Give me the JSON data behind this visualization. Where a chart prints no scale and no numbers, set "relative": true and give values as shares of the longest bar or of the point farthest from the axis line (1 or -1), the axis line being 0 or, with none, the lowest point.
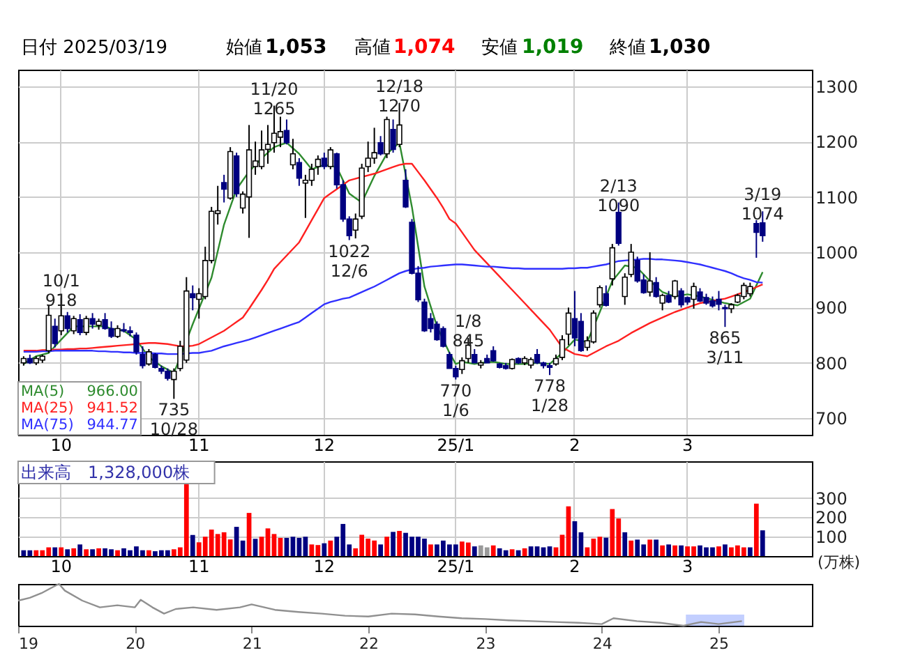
{
  "chart_data": [
    {
      "type": "candlestick",
      "categories": [
        null,
        null,
        null,
        null,
        null,
        null,
        "10",
        null,
        null,
        null,
        null,
        null,
        null,
        null,
        null,
        null,
        null,
        null,
        null,
        null,
        null,
        null,
        null,
        null,
        null,
        null,
        null,
        null,
        "11",
        null,
        null,
        null,
        null,
        null,
        null,
        null,
        null,
        null,
        null,
        null,
        null,
        null,
        null,
        null,
        null,
        null,
        null,
        null,
        "12",
        null,
        null,
        null,
        null,
        null,
        null,
        null,
        null,
        null,
        null,
        null,
        null,
        null,
        null,
        null,
        null,
        null,
        null,
        null,
        null,
        "25/1",
        null,
        null,
        null,
        null,
        null,
        null,
        null,
        null,
        null,
        null,
        null,
        null,
        null,
        null,
        null,
        null,
        null,
        null,
        "2",
        null,
        null,
        null,
        null,
        null,
        null,
        null,
        null,
        null,
        null,
        null,
        null,
        null,
        null,
        null,
        null,
        null,
        "3",
        null,
        null,
        null,
        null,
        null,
        null,
        null,
        null,
        null,
        null,
        null,
        null,
        null,
        null,
        null,
        null,
        null,
        null,
        null
      ],
      "ohlc": [
        [
          800,
          812,
          795,
          808
        ],
        [
          808,
          815,
          798,
          800
        ],
        [
          800,
          812,
          796,
          808
        ],
        [
          805,
          815,
          800,
          812
        ],
        [
          822,
          905,
          818,
          886
        ],
        [
          866,
          880,
          828,
          835
        ],
        [
          858,
          918,
          850,
          885
        ],
        [
          885,
          892,
          855,
          862
        ],
        [
          858,
          885,
          852,
          880
        ],
        [
          878,
          888,
          850,
          855
        ],
        [
          855,
          885,
          850,
          880
        ],
        [
          880,
          890,
          862,
          870
        ],
        [
          868,
          880,
          860,
          875
        ],
        [
          878,
          890,
          860,
          862
        ],
        [
          862,
          875,
          845,
          848
        ],
        [
          848,
          868,
          845,
          862
        ],
        [
          860,
          872,
          855,
          858
        ],
        [
          858,
          866,
          848,
          855
        ],
        [
          850,
          855,
          815,
          820
        ],
        [
          815,
          830,
          790,
          795
        ],
        [
          798,
          825,
          795,
          820
        ],
        [
          815,
          818,
          790,
          792
        ],
        [
          790,
          795,
          780,
          785
        ],
        [
          785,
          790,
          768,
          772
        ],
        [
          770,
          790,
          735,
          785
        ],
        [
          790,
          840,
          785,
          830
        ],
        [
          805,
          955,
          800,
          930
        ],
        [
          925,
          940,
          895,
          918
        ],
        [
          915,
          935,
          880,
          925
        ],
        [
          920,
          1010,
          915,
          985
        ],
        [
          985,
          1082,
          980,
          1074
        ],
        [
          1070,
          1120,
          1050,
          1075
        ],
        [
          1126,
          1140,
          1090,
          1114
        ],
        [
          1098,
          1190,
          1095,
          1182
        ],
        [
          1174,
          1180,
          1100,
          1106
        ],
        [
          1080,
          1110,
          1070,
          1105
        ],
        [
          1100,
          1230,
          1026,
          1185
        ],
        [
          1155,
          1200,
          1140,
          1165
        ],
        [
          1155,
          1220,
          1150,
          1185
        ],
        [
          1186,
          1230,
          1160,
          1195
        ],
        [
          1198,
          1265,
          1180,
          1215
        ],
        [
          1208,
          1245,
          1190,
          1218
        ],
        [
          1220,
          1240,
          1195,
          1198
        ],
        [
          1158,
          1205,
          1150,
          1178
        ],
        [
          1162,
          1170,
          1120,
          1134
        ],
        [
          1125,
          1140,
          1062,
          1130
        ],
        [
          1130,
          1160,
          1120,
          1150
        ],
        [
          1155,
          1175,
          1140,
          1168
        ],
        [
          1170,
          1180,
          1150,
          1155
        ],
        [
          1155,
          1190,
          1150,
          1185
        ],
        [
          1178,
          1180,
          1115,
          1122
        ],
        [
          1122,
          1130,
          1055,
          1060
        ],
        [
          1060,
          1065,
          1022,
          1030
        ],
        [
          1040,
          1070,
          1025,
          1060
        ],
        [
          1065,
          1160,
          1060,
          1152
        ],
        [
          1155,
          1200,
          1145,
          1170
        ],
        [
          1170,
          1225,
          1160,
          1180
        ],
        [
          1198,
          1210,
          1175,
          1178
        ],
        [
          1178,
          1245,
          1170,
          1240
        ],
        [
          1222,
          1240,
          1180,
          1186
        ],
        [
          1195,
          1270,
          1190,
          1230
        ],
        [
          1130,
          1150,
          1080,
          1082
        ],
        [
          1054,
          1060,
          960,
          962
        ],
        [
          962,
          975,
          910,
          914
        ],
        [
          910,
          916,
          856,
          858
        ],
        [
          880,
          890,
          855,
          862
        ],
        [
          870,
          875,
          840,
          842
        ],
        [
          862,
          866,
          828,
          830
        ],
        [
          815,
          820,
          790,
          790
        ],
        [
          790,
          795,
          770,
          775
        ],
        [
          788,
          810,
          780,
          804
        ],
        [
          808,
          845,
          800,
          832
        ],
        [
          815,
          825,
          800,
          800
        ],
        [
          796,
          805,
          790,
          800
        ],
        [
          808,
          815,
          800,
          800
        ],
        [
          822,
          830,
          802,
          804
        ],
        [
          798,
          800,
          790,
          792
        ],
        [
          795,
          800,
          788,
          790
        ],
        [
          790,
          808,
          788,
          806
        ],
        [
          808,
          810,
          798,
          800
        ],
        [
          800,
          812,
          796,
          808
        ],
        [
          796,
          810,
          790,
          806
        ],
        [
          815,
          825,
          798,
          800
        ],
        [
          800,
          802,
          790,
          795
        ],
        [
          795,
          800,
          778,
          792
        ],
        [
          798,
          815,
          795,
          808
        ],
        [
          810,
          850,
          805,
          842
        ],
        [
          852,
          900,
          832,
          890
        ],
        [
          880,
          930,
          830,
          845
        ],
        [
          875,
          890,
          820,
          822
        ],
        [
          828,
          848,
          822,
          840
        ],
        [
          838,
          895,
          835,
          890
        ],
        [
          905,
          940,
          900,
          936
        ],
        [
          925,
          940,
          902,
          904
        ],
        [
          952,
          1015,
          940,
          1008
        ],
        [
          1072,
          1090,
          1012,
          1016
        ],
        [
          920,
          962,
          905,
          955
        ],
        [
          960,
          1015,
          955,
          1000
        ],
        [
          985,
          992,
          945,
          948
        ],
        [
          950,
          960,
          925,
          927
        ],
        [
          928,
          1000,
          920,
          948
        ],
        [
          945,
          955,
          918,
          920
        ],
        [
          908,
          925,
          895,
          922
        ],
        [
          922,
          930,
          908,
          910
        ],
        [
          920,
          950,
          915,
          948
        ],
        [
          930,
          935,
          900,
          905
        ],
        [
          918,
          920,
          905,
          910
        ],
        [
          915,
          945,
          898,
          938
        ],
        [
          928,
          935,
          910,
          912
        ],
        [
          918,
          925,
          905,
          908
        ],
        [
          912,
          920,
          900,
          903
        ],
        [
          915,
          930,
          895,
          906
        ],
        [
          900,
          905,
          865,
          898
        ],
        [
          898,
          908,
          890,
          905
        ],
        [
          910,
          925,
          908,
          922
        ],
        [
          920,
          945,
          915,
          940
        ],
        [
          925,
          945,
          920,
          938
        ],
        [
          1052,
          1058,
          990,
          1036
        ],
        [
          1053,
          1074,
          1019,
          1030
        ],
        null,
        null,
        null,
        null,
        null,
        null,
        null
      ],
      "series": [
        {
          "name": "MA(5)",
          "type": "line",
          "color": "#2e8b2e",
          "values": [
            798,
            805,
            812,
            815,
            818,
            830,
            842,
            854,
            866,
            866,
            866,
            866,
            866,
            866,
            862,
            860,
            858,
            850,
            842,
            826,
            810,
            802,
            794,
            788,
            782,
            810,
            null,
            870,
            898,
            926,
            954,
            1002,
            1050,
            1082,
            1114,
            1130,
            1146,
            1158,
            1170,
            1180,
            1190,
            1194,
            1198,
            1188,
            1178,
            1164,
            1150,
            1154,
            1158,
            1156,
            1154,
            1130,
            1106,
            1098,
            1090,
            1114,
            1138,
            1158,
            1178,
            1188,
            1198,
            1140,
            1082,
            1010,
            938,
            902,
            866,
            842,
            818,
            798,
            802,
            800,
            798,
            800,
            801,
            802,
            800,
            798,
            798,
            798,
            798,
            799,
            800,
            799,
            798,
            808,
            818,
            830,
            842,
            840,
            838,
            865,
            892,
            920,
            948,
            962,
            976,
            974,
            972,
            960,
            948,
            938,
            928,
            924,
            920,
            922,
            924,
            922,
            920,
            917,
            914,
            911,
            908,
            906,
            904,
            910,
            916,
            940,
            964,
            null,
            null,
            null,
            null,
            null,
            null,
            null
          ]
        },
        {
          "name": "MA(25)",
          "type": "line",
          "color": "#ff2020",
          "values": [
            822,
            822,
            822,
            823,
            823,
            824,
            824,
            825,
            825,
            826,
            826,
            827,
            828,
            829,
            830,
            831,
            832,
            833,
            834,
            835,
            836,
            836,
            835,
            834,
            832,
            830,
            830,
            831,
            834,
            840,
            846,
            852,
            858,
            866,
            874,
            882,
            898,
            915,
            932,
            950,
            970,
            982,
            994,
            1006,
            1018,
            1038,
            1058,
            1078,
            1098,
            1106,
            1114,
            1122,
            1130,
            1133,
            1136,
            1139,
            1142,
            1146,
            1150,
            1154,
            1158,
            1160,
            1160,
            1145,
            1130,
            1114,
            1098,
            1080,
            1060,
            1052,
            1036,
            1020,
            1004,
            992,
            980,
            968,
            956,
            944,
            932,
            920,
            908,
            896,
            884,
            872,
            860,
            844,
            828,
            822,
            816,
            814,
            812,
            818,
            824,
            830,
            835,
            840,
            847,
            854,
            860,
            866,
            872,
            877,
            882,
            887,
            892,
            896,
            900,
            904,
            908,
            910,
            912,
            914,
            916,
            920,
            924,
            928,
            932,
            937,
            942,
            null,
            null,
            null,
            null,
            null,
            null,
            null
          ]
        },
        {
          "name": "MA(75)",
          "type": "line",
          "color": "#3030ff",
          "values": [
            820,
            820,
            820,
            821,
            821,
            822,
            822,
            822,
            822,
            822,
            822,
            822,
            821,
            821,
            820,
            820,
            819,
            819,
            818,
            818,
            818,
            817,
            817,
            816,
            816,
            816,
            817,
            818,
            818,
            820,
            822,
            826,
            830,
            833,
            836,
            839,
            842,
            846,
            850,
            854,
            858,
            862,
            866,
            870,
            874,
            882,
            890,
            898,
            906,
            910,
            913,
            916,
            918,
            923,
            928,
            933,
            938,
            944,
            950,
            956,
            962,
            966,
            969,
            971,
            972,
            974,
            975,
            976,
            977,
            978,
            978,
            977,
            976,
            975,
            974,
            974,
            973,
            972,
            971,
            971,
            970,
            970,
            970,
            970,
            970,
            970,
            970,
            971,
            971,
            972,
            972,
            974,
            976,
            978,
            981,
            984,
            985,
            986,
            987,
            988,
            988,
            987,
            987,
            986,
            985,
            984,
            982,
            980,
            978,
            975,
            972,
            969,
            966,
            962,
            957,
            953,
            950,
            946,
            945,
            null,
            null,
            null,
            null,
            null,
            null,
            null
          ]
        }
      ],
      "ylim": [
        670,
        1330
      ],
      "yticks": [
        700,
        800,
        900,
        1000,
        1100,
        1200,
        1300
      ],
      "grid": true,
      "legend": "bottom left",
      "annotations": [
        "日付 2025/03/19",
        "始値",
        "1,053",
        "高値",
        "1,074",
        "安値",
        "1,019",
        "終値",
        "1,030",
        "966.00",
        "941.52",
        "944.77",
        {
          "text": "10/1\n918",
          "y": 918
        },
        {
          "text": "735\n10/28",
          "y": 735
        },
        {
          "text": "11/20\n1265",
          "y": 1265
        },
        {
          "text": "1022\n12/6",
          "y": 1022
        },
        {
          "text": "12/18\n1270",
          "y": 1270
        },
        {
          "text": "770\n1/6",
          "y": 770
        },
        {
          "text": "1/8\n845",
          "y": 845
        },
        {
          "text": "778\n1/28",
          "y": 778
        },
        {
          "text": "2/13\n1090",
          "y": 1090
        },
        {
          "text": "865\n3/11",
          "y": 865
        },
        {
          "text": "3/19\n1074",
          "y": 1074
        }
      ]
    },
    {
      "type": "bar",
      "title": "出来高　1,328,000株",
      "ylabel": "(万株)",
      "categories": [
        null,
        null,
        null,
        null,
        null,
        null,
        "10",
        null,
        null,
        null,
        null,
        null,
        null,
        null,
        null,
        null,
        null,
        null,
        null,
        null,
        null,
        null,
        null,
        null,
        null,
        null,
        null,
        null,
        "11",
        null,
        null,
        null,
        null,
        null,
        null,
        null,
        null,
        null,
        null,
        null,
        null,
        null,
        null,
        null,
        null,
        null,
        null,
        null,
        "12",
        null,
        null,
        null,
        null,
        null,
        null,
        null,
        null,
        null,
        null,
        null,
        null,
        null,
        null,
        null,
        null,
        null,
        null,
        null,
        null,
        "25/1",
        null,
        null,
        null,
        null,
        null,
        null,
        null,
        null,
        null,
        null,
        null,
        null,
        null,
        null,
        null,
        null,
        null,
        null,
        "2",
        null,
        null,
        null,
        null,
        null,
        null,
        null,
        null,
        null,
        null,
        null,
        null,
        null,
        null,
        null,
        null,
        null,
        "3",
        null,
        null,
        null,
        null,
        null,
        null,
        null,
        null,
        null,
        null,
        null,
        null,
        null,
        null,
        null,
        null,
        null,
        null,
        null
      ],
      "values": [
        30,
        30,
        30,
        30,
        45,
        45,
        45,
        35,
        40,
        60,
        35,
        35,
        40,
        40,
        35,
        30,
        40,
        30,
        50,
        30,
        30,
        25,
        30,
        30,
        35,
        45,
        389,
        109,
        71,
        100,
        137,
        114,
        123,
        86,
        151,
        80,
        223,
        89,
        100,
        143,
        114,
        94,
        94,
        100,
        94,
        100,
        60,
        57,
        66,
        80,
        100,
        166,
        60,
        40,
        110,
        90,
        80,
        60,
        100,
        125,
        130,
        120,
        100,
        100,
        90,
        60,
        60,
        80,
        60,
        60,
        75,
        70,
        50,
        55,
        45,
        55,
        40,
        30,
        35,
        30,
        40,
        50,
        50,
        45,
        50,
        45,
        110,
        257,
        180,
        123,
        45,
        90,
        100,
        95,
        243,
        194,
        123,
        80,
        85,
        60,
        85,
        85,
        55,
        60,
        55,
        55,
        50,
        50,
        55,
        45,
        45,
        50,
        60,
        45,
        55,
        45,
        45,
        271,
        133,
        null,
        null,
        null,
        null,
        null,
        null,
        null
      ],
      "colors": [
        "#000080",
        "#000080",
        "#ff0000",
        "#ff0000",
        "#ff0000",
        "#000080",
        "#ff0000",
        "#000080",
        "#ff0000",
        "#000080",
        "#ff0000",
        "#000080",
        "#ff0000",
        "#000080",
        "#000080",
        "#ff0000",
        "#000080",
        "#000080",
        "#000080",
        "#000080",
        "#ff0000",
        "#000080",
        "#000080",
        "#000080",
        "#ff0000",
        "#ff0000",
        "#ff0000",
        "#000080",
        "#ff0000",
        "#ff0000",
        "#ff0000",
        "#ff0000",
        "#ff0000",
        "#ff0000",
        "#000080",
        "#000080",
        "#ff0000",
        "#000080",
        "#ff0000",
        "#ff0000",
        "#ff0000",
        "#ff0000",
        "#000080",
        "#000080",
        "#000080",
        "#000080",
        "#ff0000",
        "#ff0000",
        "#000080",
        "#ff0000",
        "#000080",
        "#000080",
        "#000080",
        "#ff0000",
        "#ff0000",
        "#ff0000",
        "#ff0000",
        "#000080",
        "#ff0000",
        "#000080",
        "#ff0000",
        "#000080",
        "#000080",
        "#000080",
        "#000080",
        "#ff0000",
        "#000080",
        "#000080",
        "#000080",
        "#000080",
        "#ff0000",
        "#ff0000",
        "#000080",
        "#999999",
        "#999999",
        "#ff0000",
        "#000080",
        "#000080",
        "#ff0000",
        "#000080",
        "#ff0000",
        "#000080",
        "#000080",
        "#000080",
        "#000080",
        "#ff0000",
        "#ff0000",
        "#ff0000",
        "#000080",
        "#000080",
        "#ff0000",
        "#ff0000",
        "#ff0000",
        "#000080",
        "#ff0000",
        "#ff0000",
        "#000080",
        "#ff0000",
        "#000080",
        "#000080",
        "#ff0000",
        "#000080",
        "#ff0000",
        "#000080",
        "#ff0000",
        "#000080",
        "#ff0000",
        "#ff0000",
        "#000080",
        "#000080",
        "#000080",
        "#ff0000",
        "#000080",
        "#ff0000",
        "#ff0000",
        "#ff0000",
        "#000080",
        "#ff0000",
        "#000080",
        null,
        null,
        null,
        null,
        null,
        null,
        null
      ],
      "ylim": [
        0,
        490
      ],
      "yticks": [
        100,
        200,
        300
      ],
      "grid": true
    },
    {
      "type": "line",
      "relative": true,
      "color": "#909090",
      "x": [
        2019.0,
        2019.1,
        2019.2,
        2019.3,
        2019.35,
        2019.4,
        2019.55,
        2019.7,
        2019.85,
        2020.0,
        2020.05,
        2020.15,
        2020.25,
        2020.35,
        2020.5,
        2020.7,
        2020.9,
        2021.0,
        2021.2,
        2021.4,
        2021.6,
        2021.8,
        2022.0,
        2022.2,
        2022.4,
        2022.6,
        2022.8,
        2023.0,
        2023.2,
        2023.4,
        2023.6,
        2023.8,
        2024.0,
        2024.1,
        2024.3,
        2024.5,
        2024.7,
        2024.85,
        2025.0,
        2025.2
      ],
      "values": [
        0.6,
        0.67,
        0.78,
        0.93,
        1.0,
        0.84,
        0.6,
        0.44,
        0.49,
        0.44,
        0.62,
        0.44,
        0.29,
        0.4,
        0.44,
        0.38,
        0.44,
        0.51,
        0.38,
        0.33,
        0.29,
        0.24,
        0.22,
        0.29,
        0.27,
        0.22,
        0.18,
        0.16,
        0.13,
        0.11,
        0.09,
        0.07,
        0.04,
        0.18,
        0.11,
        0.07,
        0.0,
        0.09,
        0.04,
        0.11
      ],
      "xlim": [
        2019,
        2025.8
      ],
      "xticks": [
        {
          "value": 2019,
          "label": "19"
        },
        {
          "value": 2020,
          "label": "20"
        },
        {
          "value": 2021,
          "label": "21"
        },
        {
          "value": 2022,
          "label": "22"
        },
        {
          "value": 2023,
          "label": "23"
        },
        {
          "value": 2024,
          "label": "24"
        },
        {
          "value": 2025,
          "label": "25"
        }
      ],
      "bands": [
        {
          "axis": "x",
          "from": 2024.72,
          "to": 2025.22,
          "color": "#aabbff"
        }
      ]
    }
  ]
}
